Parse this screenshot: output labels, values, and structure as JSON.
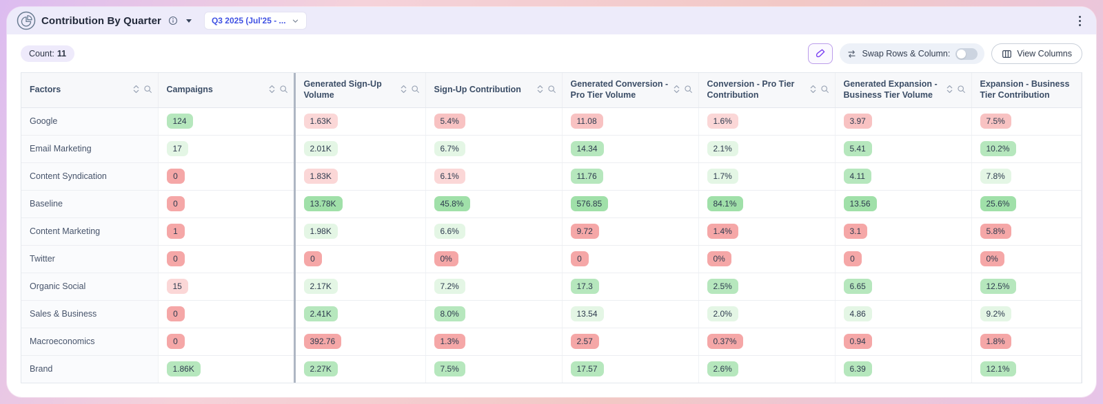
{
  "titlebar": {
    "title": "Contribution By Quarter",
    "quarter_dropdown": "Q3 2025 (Jul'25 - ..."
  },
  "toolbar": {
    "count_label": "Count:",
    "count_value": "11",
    "swap_rows_label": "Swap Rows & Column:",
    "swap_toggle_state": "off",
    "view_columns_label": "View Columns"
  },
  "colors": {
    "accent_purple": "#7a3ff2",
    "dropdown_text": "#3f51e3",
    "titlebar_bg": "#edebfa",
    "pill_tones": {
      "g1": "#e4f6e5",
      "g2": "#b6e7bd",
      "g3": "#a0e0a9",
      "r1": "#fbd7d7",
      "r2": "#f8c2c2",
      "r3": "#f5a7a7"
    }
  },
  "table": {
    "columns": [
      {
        "label": "Factors",
        "icons": true
      },
      {
        "label": "Campaigns",
        "icons": true
      },
      {
        "label": "Generated Sign-Up Volume",
        "icons": true
      },
      {
        "label": "Sign-Up Contribution",
        "icons": true
      },
      {
        "label": "Generated Conversion - Pro Tier Volume",
        "icons": true
      },
      {
        "label": "Conversion - Pro Tier Contribution",
        "icons": true
      },
      {
        "label": "Generated Expansion - Business Tier Volume",
        "icons": true
      },
      {
        "label": "Expansion - Business Tier Contribution",
        "icons": false
      }
    ],
    "rows": [
      {
        "factor": "Google",
        "cells": [
          {
            "value": "124",
            "tone": "g2"
          },
          {
            "value": "1.63K",
            "tone": "r1"
          },
          {
            "value": "5.4%",
            "tone": "r2"
          },
          {
            "value": "11.08",
            "tone": "r2"
          },
          {
            "value": "1.6%",
            "tone": "r1"
          },
          {
            "value": "3.97",
            "tone": "r2"
          },
          {
            "value": "7.5%",
            "tone": "r2"
          }
        ]
      },
      {
        "factor": "Email Marketing",
        "cells": [
          {
            "value": "17",
            "tone": "g1"
          },
          {
            "value": "2.01K",
            "tone": "g1"
          },
          {
            "value": "6.7%",
            "tone": "g1"
          },
          {
            "value": "14.34",
            "tone": "g2"
          },
          {
            "value": "2.1%",
            "tone": "g1"
          },
          {
            "value": "5.41",
            "tone": "g2"
          },
          {
            "value": "10.2%",
            "tone": "g2"
          }
        ]
      },
      {
        "factor": "Content Syndication",
        "cells": [
          {
            "value": "0",
            "tone": "r3"
          },
          {
            "value": "1.83K",
            "tone": "r1"
          },
          {
            "value": "6.1%",
            "tone": "r1"
          },
          {
            "value": "11.76",
            "tone": "g2"
          },
          {
            "value": "1.7%",
            "tone": "g1"
          },
          {
            "value": "4.11",
            "tone": "g2"
          },
          {
            "value": "7.8%",
            "tone": "g1"
          }
        ]
      },
      {
        "factor": "Baseline",
        "cells": [
          {
            "value": "0",
            "tone": "r3"
          },
          {
            "value": "13.78K",
            "tone": "g3"
          },
          {
            "value": "45.8%",
            "tone": "g3"
          },
          {
            "value": "576.85",
            "tone": "g3"
          },
          {
            "value": "84.1%",
            "tone": "g3"
          },
          {
            "value": "13.56",
            "tone": "g3"
          },
          {
            "value": "25.6%",
            "tone": "g3"
          }
        ]
      },
      {
        "factor": "Content Marketing",
        "cells": [
          {
            "value": "1",
            "tone": "r3"
          },
          {
            "value": "1.98K",
            "tone": "g1"
          },
          {
            "value": "6.6%",
            "tone": "g1"
          },
          {
            "value": "9.72",
            "tone": "r3"
          },
          {
            "value": "1.4%",
            "tone": "r3"
          },
          {
            "value": "3.1",
            "tone": "r3"
          },
          {
            "value": "5.8%",
            "tone": "r3"
          }
        ]
      },
      {
        "factor": "Twitter",
        "cells": [
          {
            "value": "0",
            "tone": "r3"
          },
          {
            "value": "0",
            "tone": "r3"
          },
          {
            "value": "0%",
            "tone": "r3"
          },
          {
            "value": "0",
            "tone": "r3"
          },
          {
            "value": "0%",
            "tone": "r3"
          },
          {
            "value": "0",
            "tone": "r3"
          },
          {
            "value": "0%",
            "tone": "r3"
          }
        ]
      },
      {
        "factor": "Organic Social",
        "cells": [
          {
            "value": "15",
            "tone": "r1"
          },
          {
            "value": "2.17K",
            "tone": "g1"
          },
          {
            "value": "7.2%",
            "tone": "g1"
          },
          {
            "value": "17.3",
            "tone": "g2"
          },
          {
            "value": "2.5%",
            "tone": "g2"
          },
          {
            "value": "6.65",
            "tone": "g2"
          },
          {
            "value": "12.5%",
            "tone": "g2"
          }
        ]
      },
      {
        "factor": "Sales & Business",
        "cells": [
          {
            "value": "0",
            "tone": "r3"
          },
          {
            "value": "2.41K",
            "tone": "g2"
          },
          {
            "value": "8.0%",
            "tone": "g2"
          },
          {
            "value": "13.54",
            "tone": "g1"
          },
          {
            "value": "2.0%",
            "tone": "g1"
          },
          {
            "value": "4.86",
            "tone": "g1"
          },
          {
            "value": "9.2%",
            "tone": "g1"
          }
        ]
      },
      {
        "factor": "Macroeconomics",
        "cells": [
          {
            "value": "0",
            "tone": "r3"
          },
          {
            "value": "392.76",
            "tone": "r3"
          },
          {
            "value": "1.3%",
            "tone": "r3"
          },
          {
            "value": "2.57",
            "tone": "r3"
          },
          {
            "value": "0.37%",
            "tone": "r3"
          },
          {
            "value": "0.94",
            "tone": "r3"
          },
          {
            "value": "1.8%",
            "tone": "r3"
          }
        ]
      },
      {
        "factor": "Brand",
        "cells": [
          {
            "value": "1.86K",
            "tone": "g2"
          },
          {
            "value": "2.27K",
            "tone": "g2"
          },
          {
            "value": "7.5%",
            "tone": "g2"
          },
          {
            "value": "17.57",
            "tone": "g2"
          },
          {
            "value": "2.6%",
            "tone": "g2"
          },
          {
            "value": "6.39",
            "tone": "g2"
          },
          {
            "value": "12.1%",
            "tone": "g2"
          }
        ]
      }
    ]
  }
}
